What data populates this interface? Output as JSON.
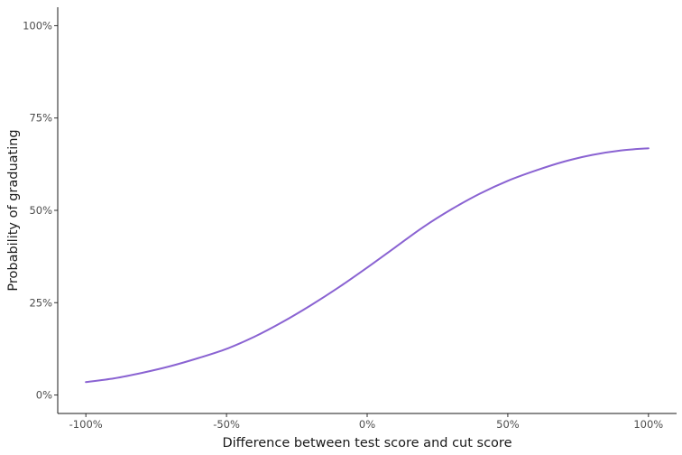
{
  "chart_data": {
    "type": "line",
    "xlabel": "Difference between test score and cut score",
    "ylabel": "Probability of graduating",
    "xlim": [
      -1.1,
      1.1
    ],
    "ylim": [
      -0.05,
      1.05
    ],
    "x_ticks": [
      {
        "value": -1.0,
        "label": "-100%"
      },
      {
        "value": -0.5,
        "label": "-50%"
      },
      {
        "value": 0.0,
        "label": "0%"
      },
      {
        "value": 0.5,
        "label": "50%"
      },
      {
        "value": 1.0,
        "label": "100%"
      }
    ],
    "y_ticks": [
      {
        "value": 0.0,
        "label": "0%"
      },
      {
        "value": 0.25,
        "label": "25%"
      },
      {
        "value": 0.5,
        "label": "50%"
      },
      {
        "value": 0.75,
        "label": "75%"
      },
      {
        "value": 1.0,
        "label": "100%"
      }
    ],
    "grid": false,
    "series": [
      {
        "color": "#8a63d2",
        "x": [
          -1.0,
          -0.9,
          -0.8,
          -0.7,
          -0.6,
          -0.5,
          -0.4,
          -0.3,
          -0.2,
          -0.1,
          0.0,
          0.1,
          0.2,
          0.3,
          0.4,
          0.5,
          0.6,
          0.7,
          0.8,
          0.9,
          1.0
        ],
        "y": [
          0.035,
          0.045,
          0.06,
          0.078,
          0.1,
          0.125,
          0.158,
          0.198,
          0.243,
          0.292,
          0.345,
          0.4,
          0.455,
          0.503,
          0.545,
          0.58,
          0.608,
          0.632,
          0.65,
          0.662,
          0.668
        ]
      }
    ]
  }
}
